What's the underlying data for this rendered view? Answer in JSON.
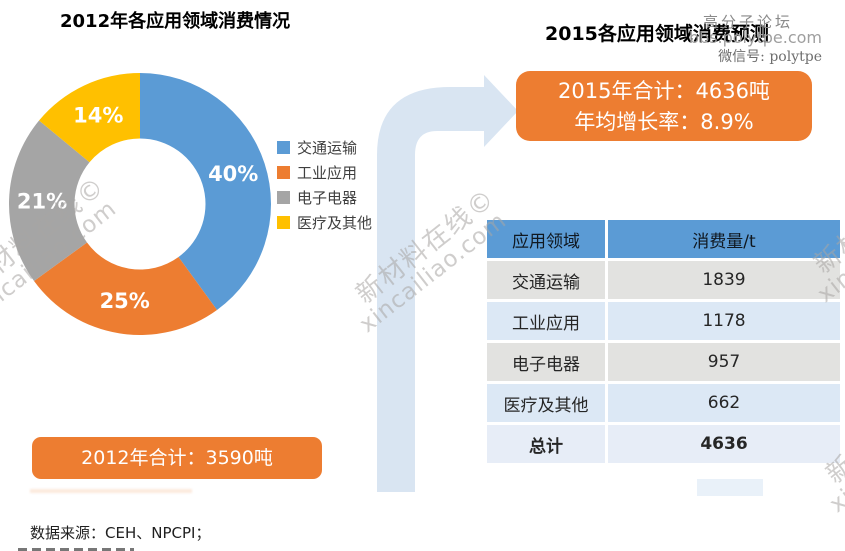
{
  "titles": {
    "left": "2012年各应用领域消费情况",
    "right": "2015各应用领域消费预测"
  },
  "watermark_forum": {
    "line1": "高分子论坛",
    "line2": "bbs.polytpe.com",
    "line3": "微信号: polytpe"
  },
  "watermark_site": {
    "line1": "新材料在线©",
    "line2": "xincailiao.com"
  },
  "callout_2015": {
    "line1": "2015年合计：4636吨",
    "line2": "年均增长率：8.9%"
  },
  "callout_2012": {
    "text": "2012年合计：3590吨"
  },
  "source": {
    "text": "数据来源：CEH、NPCPI；"
  },
  "colors": {
    "accent_blue": "#5B9BD5",
    "accent_orange": "#ED7D31",
    "accent_gray": "#A5A5A5",
    "accent_yellow": "#FFC000",
    "arrow_blue": "#D9E5F2",
    "row_gray": "#E2E2E0",
    "row_blue": "#DCE8F5",
    "row_total": "#E7EDF7"
  },
  "chart_data": [
    {
      "type": "pie",
      "subtype": "donut",
      "title": "2012年各应用领域消费情况",
      "categories": [
        "交通运输",
        "工业应用",
        "电子电器",
        "医疗及其他"
      ],
      "values": [
        40,
        25,
        21,
        14
      ],
      "unit": "%",
      "labels": [
        "40%",
        "25%",
        "21%",
        "14%"
      ],
      "colors": [
        "#5B9BD5",
        "#ED7D31",
        "#A5A5A5",
        "#FFC000"
      ],
      "start_angle_deg": 0,
      "direction": "clockwise",
      "legend_position": "right",
      "total_annotation": "2012年合计：3590吨"
    },
    {
      "type": "table",
      "title": "2015各应用领域消费预测",
      "columns": [
        "应用领域",
        "消费量/t"
      ],
      "rows": [
        {
          "label": "交通运输",
          "value": "1839"
        },
        {
          "label": "工业应用",
          "value": "1178"
        },
        {
          "label": "电子电器",
          "value": "957"
        },
        {
          "label": "医疗及其他",
          "value": "662"
        },
        {
          "label": "总计",
          "value": "4636",
          "bold": true
        }
      ],
      "annotation": [
        "2015年合计：4636吨",
        "年均增长率：8.9%"
      ]
    }
  ]
}
